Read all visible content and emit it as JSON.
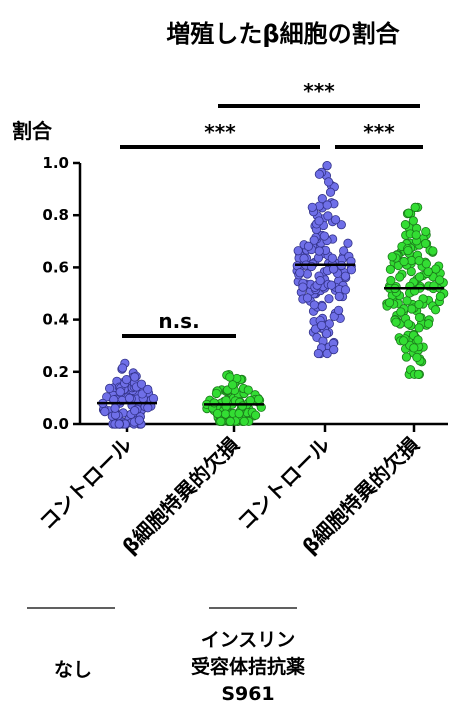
{
  "chart_data": {
    "type": "scatter",
    "title": "増殖したβ細胞の割合",
    "ylabel": "割合",
    "xlabel": "",
    "ylim": [
      0,
      1.0
    ],
    "yticks": [
      "0.0",
      "0.2",
      "0.4",
      "0.6",
      "0.8",
      "1.0"
    ],
    "ytick_values": [
      0,
      0.2,
      0.4,
      0.6,
      0.8,
      1.0
    ],
    "grid": false,
    "categories": [
      "コントロール",
      "β細胞特異的欠損",
      "コントロール",
      "β細胞特異的欠損"
    ],
    "series": [
      {
        "category_index": 0,
        "color": "#6f6fe8",
        "edge": "#33338a",
        "mean": 0.08,
        "min": 0.0,
        "max": 0.25,
        "n": 110
      },
      {
        "category_index": 1,
        "color": "#33dd33",
        "edge": "#1b7a1b",
        "mean": 0.075,
        "min": 0.01,
        "max": 0.22,
        "n": 100
      },
      {
        "category_index": 2,
        "color": "#6f6fe8",
        "edge": "#33338a",
        "mean": 0.61,
        "min": 0.27,
        "max": 0.99,
        "n": 150
      },
      {
        "category_index": 3,
        "color": "#33dd33",
        "edge": "#1b7a1b",
        "mean": 0.52,
        "min": 0.19,
        "max": 0.83,
        "n": 160
      }
    ],
    "significance": [
      {
        "from": 0,
        "to": 1,
        "label": "n.s."
      },
      {
        "from": 0,
        "to": 2,
        "label": "***"
      },
      {
        "from": 2,
        "to": 3,
        "label": "***"
      },
      {
        "from": 1,
        "to": 3,
        "label": "***"
      }
    ],
    "groups": [
      {
        "label": "なし",
        "from": 0,
        "to": 0
      },
      {
        "label_lines": [
          "インスリン",
          "受容体拮抗薬",
          "S961"
        ],
        "from": 1,
        "to": 2
      }
    ]
  }
}
